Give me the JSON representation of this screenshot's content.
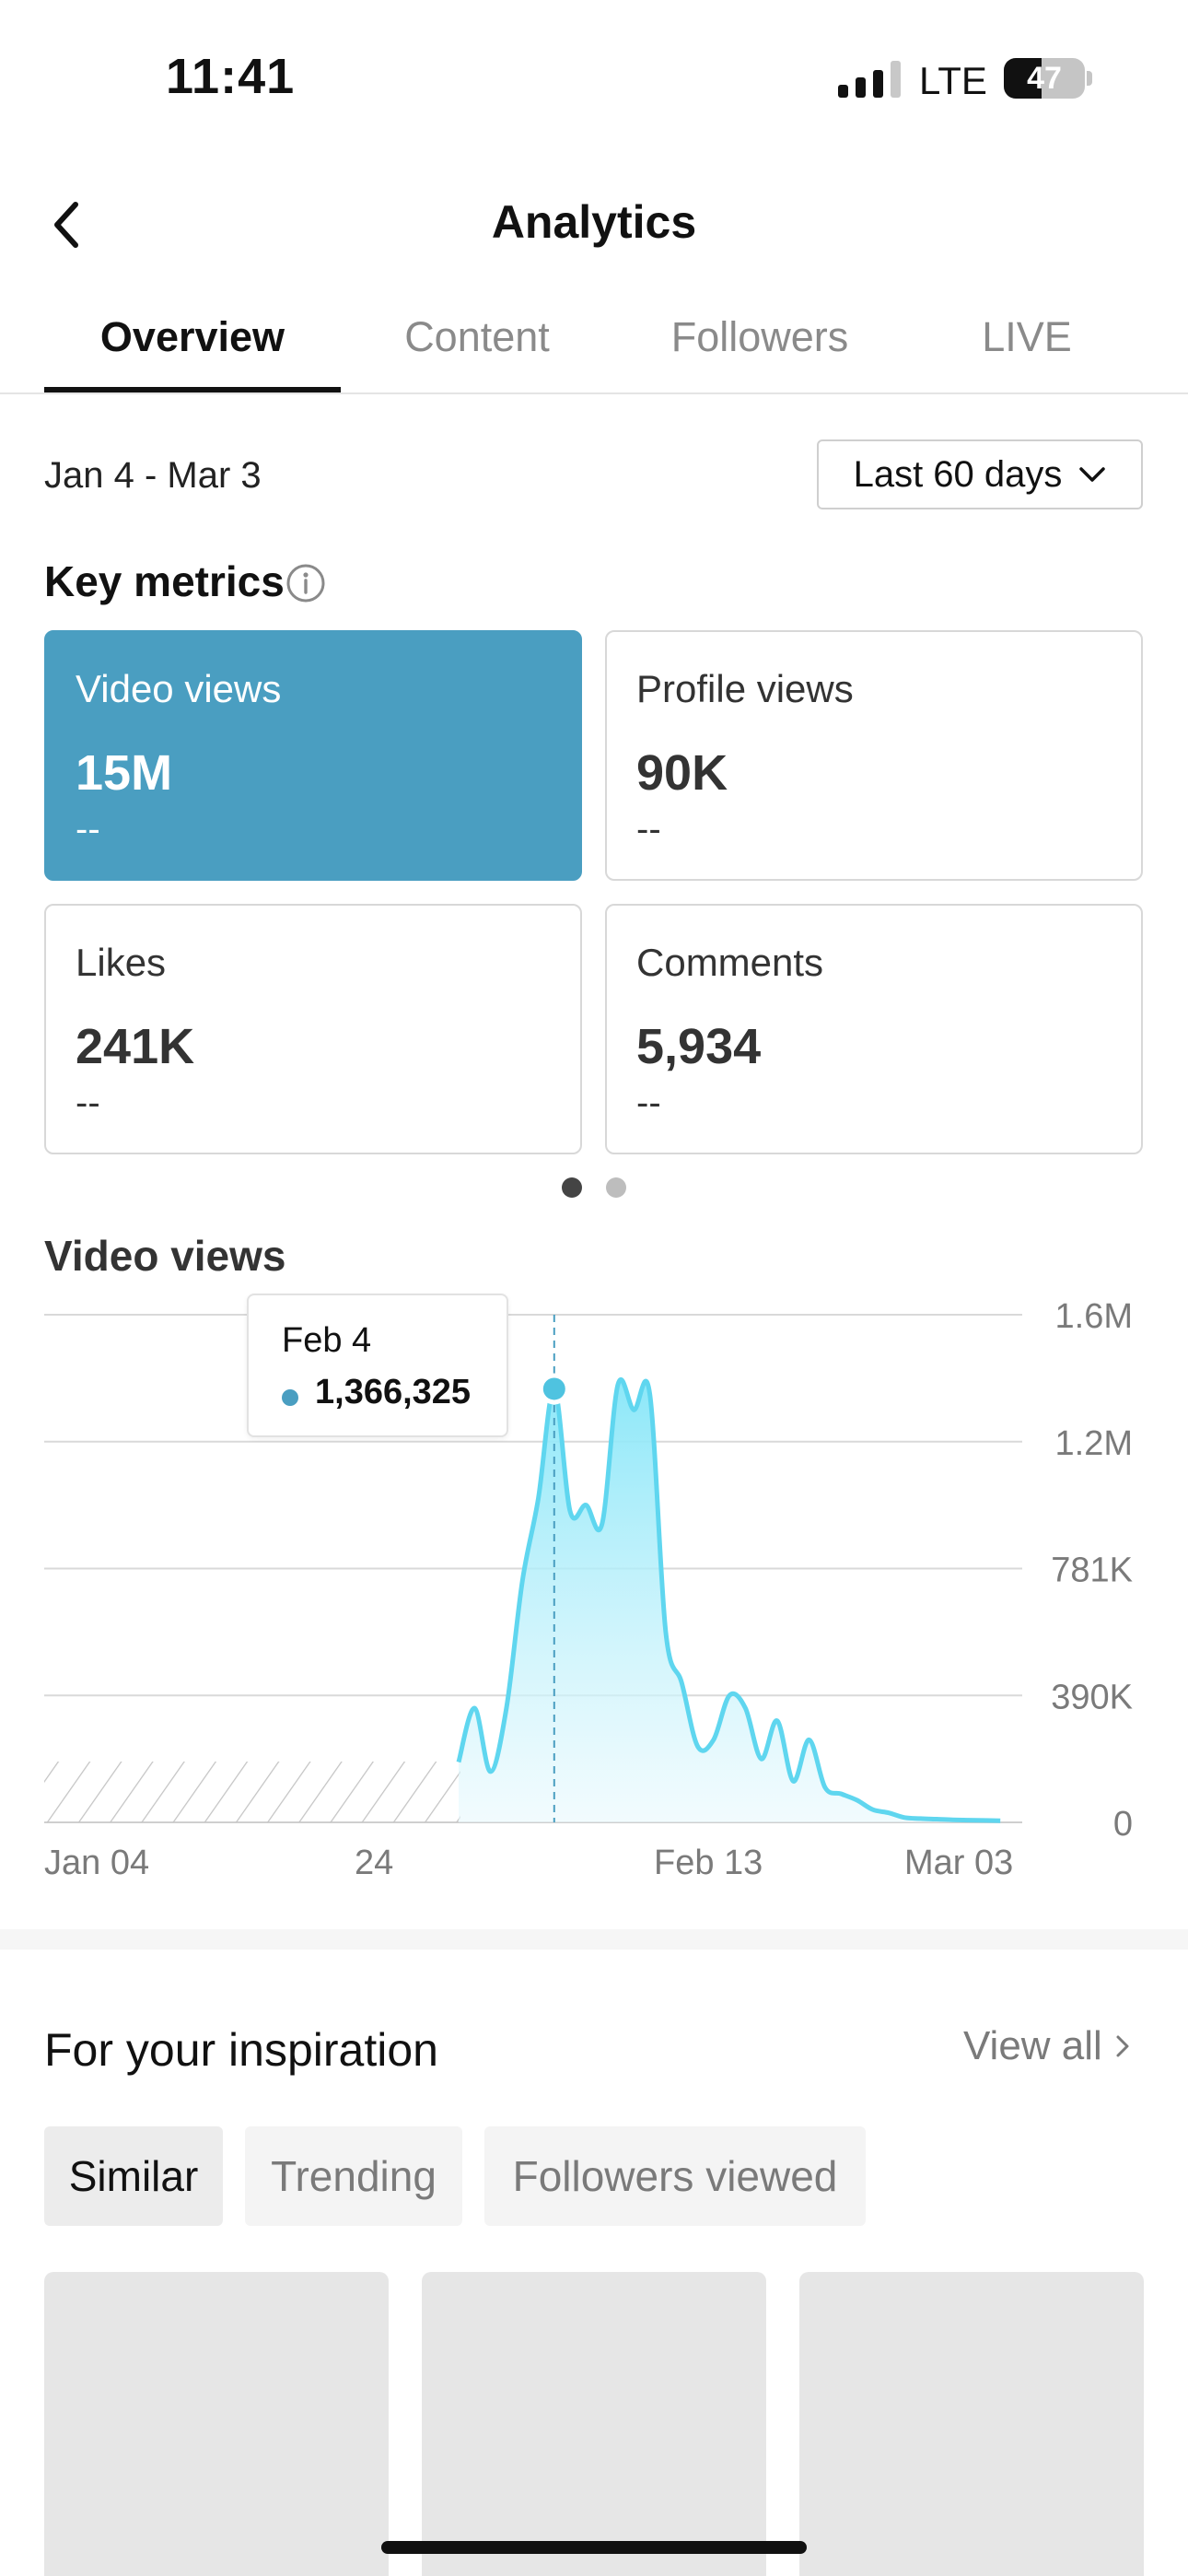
{
  "status_bar": {
    "time": "11:41",
    "network": "LTE",
    "battery": "47"
  },
  "header": {
    "title": "Analytics"
  },
  "tabs": [
    {
      "label": "Overview",
      "active": true
    },
    {
      "label": "Content",
      "active": false
    },
    {
      "label": "Followers",
      "active": false
    },
    {
      "label": "LIVE",
      "active": false
    }
  ],
  "date_range": {
    "label": "Jan 4 - Mar 3",
    "selector": "Last 60 days"
  },
  "key_metrics": {
    "title": "Key metrics",
    "cards": [
      {
        "label": "Video views",
        "value": "15M",
        "change": "--",
        "active": true
      },
      {
        "label": "Profile views",
        "value": "90K",
        "change": "--",
        "active": false
      },
      {
        "label": "Likes",
        "value": "241K",
        "change": "--",
        "active": false
      },
      {
        "label": "Comments",
        "value": "5,934",
        "change": "--",
        "active": false
      }
    ],
    "page_indicator": {
      "pages": 2,
      "current": 1
    }
  },
  "video_views": {
    "title": "Video views",
    "tooltip": {
      "date": "Feb 4",
      "value": "1,366,325"
    }
  },
  "chart_data": {
    "type": "area",
    "title": "Video views",
    "x_tick_labels": [
      "Jan 04",
      "24",
      "Feb 13",
      "Mar 03"
    ],
    "y_tick_labels": [
      "1.6M",
      "1.2M",
      "781K",
      "390K",
      "0"
    ],
    "ylim": [
      0,
      1600000
    ],
    "grid": true,
    "no_data_range": [
      "Jan 04",
      "Jan 28"
    ],
    "series": [
      {
        "color": "#5fd6ef",
        "x": [
          "Jan 29",
          "Jan 30",
          "Jan 31",
          "Feb 1",
          "Feb 2",
          "Feb 3",
          "Feb 4",
          "Feb 5",
          "Feb 6",
          "Feb 7",
          "Feb 8",
          "Feb 9",
          "Feb 10",
          "Feb 11",
          "Feb 12",
          "Feb 13",
          "Feb 14",
          "Feb 15",
          "Feb 16",
          "Feb 17",
          "Feb 18",
          "Feb 19",
          "Feb 20",
          "Feb 21",
          "Feb 22",
          "Feb 23",
          "Feb 24",
          "Feb 25",
          "Feb 26",
          "Feb 27",
          "Feb 28",
          "Feb 29",
          "Mar 1",
          "Mar 2",
          "Mar 3"
        ],
        "values": [
          190000,
          360000,
          160000,
          360000,
          760000,
          1020000,
          1366325,
          980000,
          1000000,
          940000,
          1380000,
          1300000,
          1350000,
          600000,
          440000,
          240000,
          260000,
          400000,
          360000,
          200000,
          320000,
          130000,
          260000,
          110000,
          90000,
          70000,
          40000,
          30000,
          15000,
          12000,
          10000,
          8000,
          7000,
          6000,
          5000
        ]
      }
    ],
    "highlight": {
      "x": "Feb 4",
      "value": 1366325
    }
  },
  "inspiration": {
    "title": "For your inspiration",
    "view_all": "View all",
    "chips": [
      {
        "label": "Similar",
        "active": true
      },
      {
        "label": "Trending",
        "active": false
      },
      {
        "label": "Followers viewed",
        "active": false
      }
    ]
  },
  "colors": {
    "accent": "#4a9ec1",
    "chart_line": "#5fd6ef"
  }
}
